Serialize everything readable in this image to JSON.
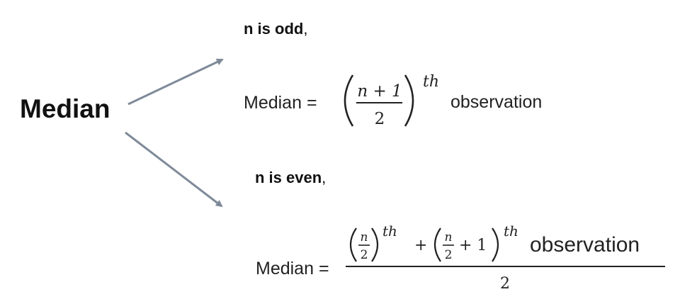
{
  "title": "Median",
  "odd": {
    "label": "n is odd",
    "label_comma": ",",
    "lhs": "Median =",
    "numerator": "n + 1",
    "denominator": "2",
    "superscript": "th",
    "rhs": "observation"
  },
  "even": {
    "label": "n is even",
    "label_comma": ",",
    "lhs": "Median =",
    "frac1_num": "n",
    "frac1_den": "2",
    "sup1": "th",
    "plus": "+",
    "frac2_num": "n",
    "frac2_den": "2",
    "plus_one": "+ 1",
    "sup2": "th",
    "obs": "observation",
    "denominator": "2"
  },
  "colors": {
    "arrow": "#7f8a99",
    "text": "#1a1a1a"
  }
}
